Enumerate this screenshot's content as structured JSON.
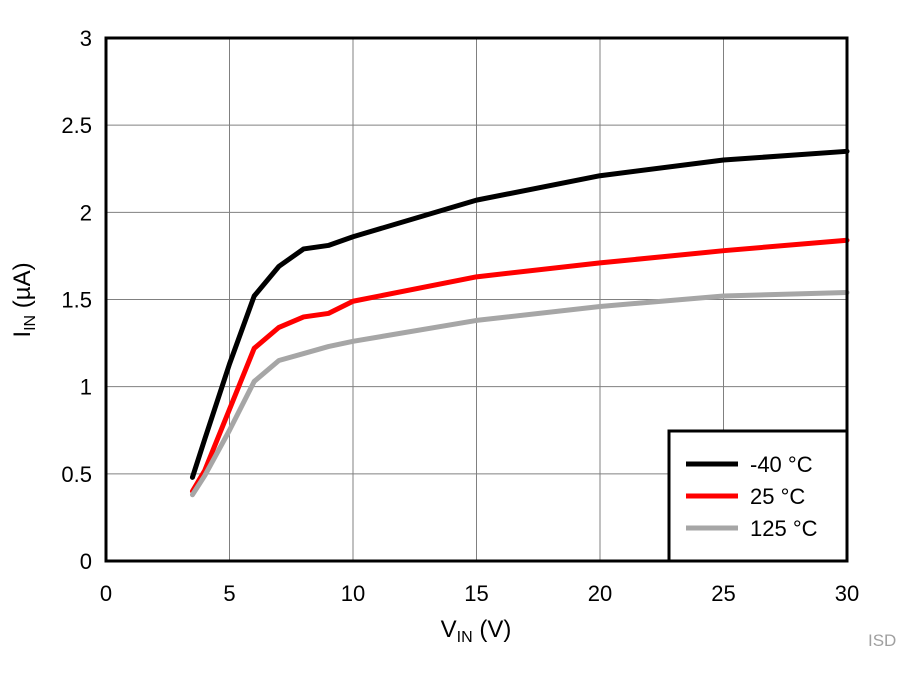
{
  "chart_data": {
    "type": "line",
    "xlabel": "V",
    "xlabel_sub": "IN",
    "xlabel_unit": " (V)",
    "ylabel": "I",
    "ylabel_sub": "IN",
    "ylabel_unit": " (µA)",
    "xlim": [
      0,
      30
    ],
    "ylim": [
      0,
      3
    ],
    "xticks": [
      "0",
      "5",
      "10",
      "15",
      "20",
      "25",
      "30"
    ],
    "yticks": [
      "0",
      "0.5",
      "1",
      "1.5",
      "2",
      "2.5",
      "3"
    ],
    "grid": true,
    "legend_position": "bottom-right",
    "watermark": "ISD",
    "series": [
      {
        "name": "-40 °C",
        "color": "#000000",
        "x": [
          3.5,
          4,
          5,
          6,
          7,
          8,
          9,
          10,
          15,
          20,
          25,
          30
        ],
        "y": [
          0.48,
          0.7,
          1.13,
          1.52,
          1.69,
          1.79,
          1.81,
          1.86,
          2.07,
          2.21,
          2.3,
          2.35
        ]
      },
      {
        "name": "25 °C",
        "color": "#ff0000",
        "x": [
          3.5,
          4,
          5,
          6,
          7,
          8,
          9,
          10,
          15,
          20,
          25,
          30
        ],
        "y": [
          0.4,
          0.52,
          0.87,
          1.22,
          1.34,
          1.4,
          1.42,
          1.49,
          1.63,
          1.71,
          1.78,
          1.84
        ]
      },
      {
        "name": "125 °C",
        "color": "#a6a6a6",
        "x": [
          3.5,
          4,
          5,
          6,
          7,
          8,
          9,
          10,
          15,
          20,
          25,
          30
        ],
        "y": [
          0.38,
          0.49,
          0.75,
          1.03,
          1.15,
          1.19,
          1.23,
          1.26,
          1.38,
          1.46,
          1.52,
          1.54
        ]
      }
    ]
  }
}
